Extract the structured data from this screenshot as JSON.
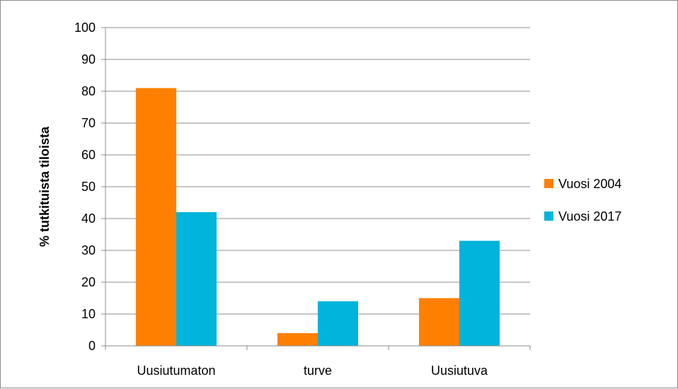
{
  "chart_data": {
    "type": "bar",
    "categories": [
      "Uusiutumaton",
      "turve",
      "Uusiutuva"
    ],
    "series": [
      {
        "name": "Vuosi 2004",
        "color": "#FF8000",
        "values": [
          81,
          4,
          15
        ]
      },
      {
        "name": "Vuosi 2017",
        "color": "#00B4DC",
        "values": [
          42,
          14,
          33
        ]
      }
    ],
    "ylabel": "% tutkituista tiloista",
    "xlabel": "",
    "ylim": [
      0,
      100
    ],
    "yticks": [
      0,
      10,
      20,
      30,
      40,
      50,
      60,
      70,
      80,
      90,
      100
    ],
    "grid": true,
    "legend_position": "right"
  }
}
